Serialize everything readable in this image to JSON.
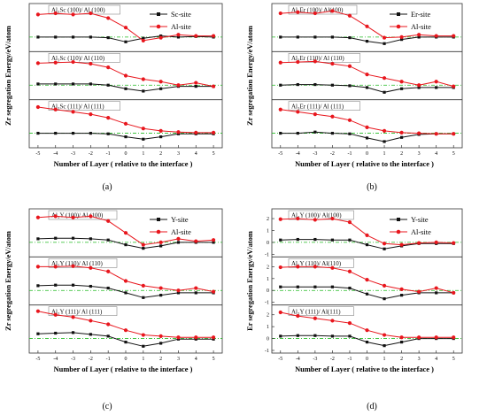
{
  "colors": {
    "red": "#e8161d",
    "black": "#111111",
    "zero_line": "#22bb22",
    "frame": "#333333"
  },
  "chart_data": [
    {
      "caption": "(a)",
      "type": "line",
      "ylabel": "Zr segregation Energy/eV/atom",
      "xlabel": "Number of Layer ( relative to the interface )",
      "x": [
        -5,
        -4,
        -3,
        -2,
        -1,
        0,
        1,
        2,
        3,
        4,
        5
      ],
      "xlim": [
        -5.5,
        5.5
      ],
      "legend": [
        {
          "name": "Sc-site",
          "color": "black",
          "marker": "square"
        },
        {
          "name": "Al-site",
          "color": "red",
          "marker": "circle"
        }
      ],
      "legend_position": "top-right",
      "grid": false,
      "panels": [
        {
          "label": "Al₃Sc (100)/ Al (100)",
          "ylim": [
            -1,
            2.6
          ],
          "ticks": [],
          "series": [
            {
              "name": "Sc-site",
              "color": "black",
              "values": [
                0.0,
                0.0,
                0.0,
                0.0,
                -0.05,
                -0.4,
                -0.1,
                0.1,
                0.0,
                0.05,
                0.0
              ]
            },
            {
              "name": "Al-site",
              "color": "red",
              "values": [
                1.9,
                2.0,
                1.9,
                2.0,
                1.6,
                0.8,
                -0.3,
                -0.05,
                0.2,
                0.1,
                0.1
              ]
            }
          ]
        },
        {
          "label": "Al₃Sc (110)/ Al (110)",
          "ylim": [
            -1,
            2.6
          ],
          "ticks": [],
          "series": [
            {
              "name": "Sc-site",
              "color": "black",
              "values": [
                0.1,
                0.1,
                0.1,
                0.1,
                0.0,
                -0.3,
                -0.5,
                -0.3,
                -0.1,
                -0.1,
                -0.1
              ]
            },
            {
              "name": "Al-site",
              "color": "red",
              "values": [
                1.85,
                1.9,
                1.95,
                1.8,
                1.5,
                0.8,
                0.5,
                0.3,
                0.0,
                0.2,
                -0.1
              ]
            }
          ]
        },
        {
          "label": "Al₃Sc (111)/ Al (111)",
          "ylim": [
            -1,
            2.6
          ],
          "ticks": [],
          "series": [
            {
              "name": "Sc-site",
              "color": "black",
              "values": [
                0.0,
                0.0,
                0.0,
                0.0,
                -0.05,
                -0.3,
                -0.5,
                -0.3,
                -0.05,
                -0.05,
                -0.05
              ]
            },
            {
              "name": "Al-site",
              "color": "red",
              "values": [
                2.2,
                2.0,
                1.8,
                1.6,
                1.3,
                0.8,
                0.4,
                0.2,
                0.1,
                0.05,
                0.05
              ]
            }
          ]
        }
      ]
    },
    {
      "caption": "(b)",
      "type": "line",
      "ylabel": "Zr segregation Energy/eV/atom",
      "xlabel": "Number of Layer ( relative to the interface )",
      "x": [
        -5,
        -4,
        -3,
        -2,
        -1,
        0,
        1,
        2,
        3,
        4,
        5
      ],
      "xlim": [
        -5.5,
        5.5
      ],
      "legend": [
        {
          "name": "Er-site",
          "color": "black",
          "marker": "square"
        },
        {
          "name": "Al-site",
          "color": "red",
          "marker": "circle"
        }
      ],
      "legend_position": "top-right",
      "grid": false,
      "panels": [
        {
          "label": "Al₃Er (100)/ Al(100)",
          "ylim": [
            -1,
            2.6
          ],
          "ticks": [],
          "series": [
            {
              "name": "Er-site",
              "color": "black",
              "values": [
                0.0,
                0.0,
                0.0,
                0.0,
                -0.05,
                -0.35,
                -0.55,
                -0.2,
                0.0,
                0.0,
                0.0
              ]
            },
            {
              "name": "Al-site",
              "color": "red",
              "values": [
                2.0,
                2.1,
                2.0,
                2.2,
                1.8,
                0.9,
                -0.05,
                0.0,
                0.2,
                0.1,
                0.1
              ]
            }
          ]
        },
        {
          "label": "Al₃Er (110)/ Al (110)",
          "ylim": [
            -1,
            2.6
          ],
          "ticks": [],
          "series": [
            {
              "name": "Er-site",
              "color": "black",
              "values": [
                0.0,
                0.05,
                0.05,
                0.0,
                -0.05,
                -0.2,
                -0.6,
                -0.3,
                -0.2,
                -0.2,
                -0.2
              ]
            },
            {
              "name": "Al-site",
              "color": "red",
              "values": [
                1.9,
                1.95,
                2.0,
                1.8,
                1.6,
                0.9,
                0.6,
                0.3,
                0.0,
                0.3,
                -0.1
              ]
            }
          ]
        },
        {
          "label": "Al₃Er (111)/ Al (111)",
          "ylim": [
            -1,
            2.6
          ],
          "ticks": [],
          "series": [
            {
              "name": "Er-site",
              "color": "black",
              "values": [
                0.0,
                0.0,
                0.1,
                0.0,
                -0.05,
                -0.4,
                -0.7,
                -0.35,
                -0.1,
                -0.05,
                -0.05
              ]
            },
            {
              "name": "Al-site",
              "color": "red",
              "values": [
                2.0,
                1.8,
                1.6,
                1.4,
                1.1,
                0.5,
                0.2,
                0.05,
                0.0,
                -0.05,
                -0.05
              ]
            }
          ]
        }
      ]
    },
    {
      "caption": "(c)",
      "type": "line",
      "ylabel": "Zr segregation Energy/eV/atom",
      "xlabel": "Number of Layer ( relative to the interface )",
      "x": [
        -5,
        -4,
        -3,
        -2,
        -1,
        0,
        1,
        2,
        3,
        4,
        5
      ],
      "xlim": [
        -5.5,
        5.5
      ],
      "legend": [
        {
          "name": "Y-site",
          "color": "black",
          "marker": "square"
        },
        {
          "name": "Al-site",
          "color": "red",
          "marker": "circle"
        }
      ],
      "legend_position": "top-right",
      "grid": false,
      "panels": [
        {
          "label": "Al₃Y (100)/ Al (100)",
          "ylim": [
            -1,
            2.6
          ],
          "ticks": [],
          "series": [
            {
              "name": "Y-site",
              "color": "black",
              "values": [
                0.3,
                0.35,
                0.35,
                0.3,
                0.2,
                -0.2,
                -0.5,
                -0.3,
                0.0,
                0.0,
                0.0
              ]
            },
            {
              "name": "Al-site",
              "color": "red",
              "values": [
                2.1,
                2.2,
                2.1,
                2.2,
                1.8,
                0.8,
                -0.2,
                0.0,
                0.3,
                0.1,
                0.2
              ]
            }
          ]
        },
        {
          "label": "Al₃Y (110)/ Al (110)",
          "ylim": [
            -1,
            2.6
          ],
          "ticks": [],
          "series": [
            {
              "name": "Y-site",
              "color": "black",
              "values": [
                0.4,
                0.45,
                0.45,
                0.35,
                0.2,
                -0.2,
                -0.6,
                -0.4,
                -0.2,
                -0.2,
                -0.2
              ]
            },
            {
              "name": "Al-site",
              "color": "red",
              "values": [
                2.0,
                2.0,
                2.05,
                1.9,
                1.6,
                0.8,
                0.4,
                0.2,
                0.0,
                0.2,
                -0.1
              ]
            }
          ]
        },
        {
          "label": "Al₃Y (111)/ Al (111)",
          "ylim": [
            -1,
            2.6
          ],
          "ticks": [],
          "series": [
            {
              "name": "Y-site",
              "color": "black",
              "values": [
                0.4,
                0.45,
                0.5,
                0.35,
                0.2,
                -0.3,
                -0.65,
                -0.4,
                -0.05,
                -0.05,
                -0.05
              ]
            },
            {
              "name": "Al-site",
              "color": "red",
              "values": [
                2.3,
                2.0,
                1.8,
                1.5,
                1.2,
                0.7,
                0.3,
                0.2,
                0.1,
                0.1,
                0.1
              ]
            }
          ]
        }
      ]
    },
    {
      "caption": "(d)",
      "type": "line",
      "ylabel": "Er segregation Energy/eV/atom",
      "xlabel": "Number of Layer ( relative to the interface )",
      "x": [
        -5,
        -4,
        -3,
        -2,
        -1,
        0,
        1,
        2,
        3,
        4,
        5
      ],
      "xlim": [
        -5.5,
        5.5
      ],
      "legend": [
        {
          "name": "Y-site",
          "color": "black",
          "marker": "square"
        },
        {
          "name": "Al-site",
          "color": "red",
          "marker": "circle"
        }
      ],
      "legend_position": "top-right",
      "grid": false,
      "panels": [
        {
          "label": "Al₃Y (100)/ Al(100)",
          "ylim": [
            -1,
            2.6
          ],
          "ticks": [
            -1,
            0,
            1,
            2
          ],
          "series": [
            {
              "name": "Y-site",
              "color": "black",
              "values": [
                0.2,
                0.25,
                0.25,
                0.2,
                0.2,
                -0.2,
                -0.55,
                -0.3,
                -0.1,
                -0.1,
                -0.1
              ]
            },
            {
              "name": "Al-site",
              "color": "red",
              "values": [
                1.95,
                2.0,
                1.9,
                2.0,
                1.7,
                0.6,
                -0.1,
                -0.2,
                -0.05,
                0.0,
                -0.05
              ]
            }
          ]
        },
        {
          "label": "Al₃Y (110)/ Al(110)",
          "ylim": [
            -1,
            2.6
          ],
          "ticks": [
            -1,
            0,
            1,
            2
          ],
          "series": [
            {
              "name": "Y-site",
              "color": "black",
              "values": [
                0.3,
                0.3,
                0.3,
                0.3,
                0.2,
                -0.3,
                -0.7,
                -0.4,
                -0.2,
                -0.2,
                -0.2
              ]
            },
            {
              "name": "Al-site",
              "color": "red",
              "values": [
                1.95,
                2.0,
                2.0,
                1.9,
                1.6,
                0.9,
                0.4,
                0.1,
                -0.1,
                0.2,
                -0.2
              ]
            }
          ]
        },
        {
          "label": "Al₃Y (111)/ Al(111)",
          "ylim": [
            -1,
            2.6
          ],
          "ticks": [
            -1,
            0,
            1,
            2
          ],
          "series": [
            {
              "name": "Y-site",
              "color": "black",
              "values": [
                0.2,
                0.25,
                0.25,
                0.2,
                0.2,
                -0.3,
                -0.6,
                -0.3,
                0.0,
                0.0,
                0.0
              ]
            },
            {
              "name": "Al-site",
              "color": "red",
              "values": [
                2.2,
                1.9,
                1.7,
                1.5,
                1.3,
                0.7,
                0.3,
                0.1,
                0.1,
                0.1,
                0.1
              ]
            }
          ]
        }
      ]
    }
  ]
}
